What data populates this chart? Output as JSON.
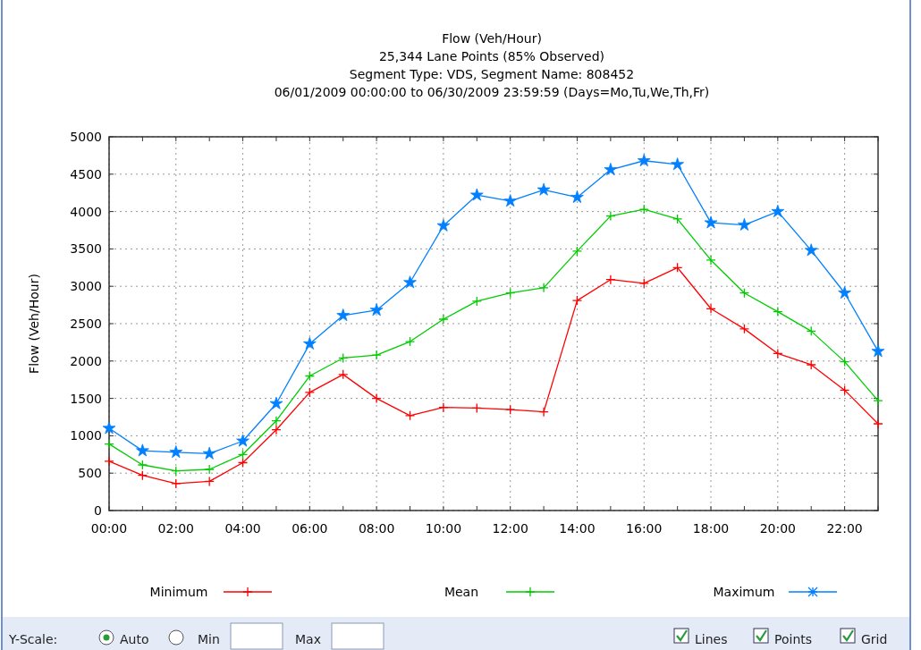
{
  "chart_data": {
    "type": "line",
    "title": "Flow (Veh/Hour)",
    "subtitle": "25,344 Lane Points (85% Observed)\nSegment Type: VDS, Segment Name: 808452\n06/01/2009 00:00:00 to 06/30/2009 23:59:59 (Days=Mo,Tu,We,Th,Fr)",
    "ylabel": "Flow (Veh/Hour)",
    "x": [
      0,
      1,
      2,
      3,
      4,
      5,
      6,
      7,
      8,
      9,
      10,
      11,
      12,
      13,
      14,
      15,
      16,
      17,
      18,
      19,
      20,
      21,
      22,
      23
    ],
    "xlim": [
      0,
      23
    ],
    "xticks": [
      {
        "value": 0,
        "label": "00:00"
      },
      {
        "value": 1,
        "label": null
      },
      {
        "value": 2,
        "label": "02:00"
      },
      {
        "value": 3,
        "label": null
      },
      {
        "value": 4,
        "label": "04:00"
      },
      {
        "value": 5,
        "label": null
      },
      {
        "value": 6,
        "label": "06:00"
      },
      {
        "value": 7,
        "label": null
      },
      {
        "value": 8,
        "label": "08:00"
      },
      {
        "value": 9,
        "label": null
      },
      {
        "value": 10,
        "label": "10:00"
      },
      {
        "value": 11,
        "label": null
      },
      {
        "value": 12,
        "label": "12:00"
      },
      {
        "value": 13,
        "label": null
      },
      {
        "value": 14,
        "label": "14:00"
      },
      {
        "value": 15,
        "label": null
      },
      {
        "value": 16,
        "label": "16:00"
      },
      {
        "value": 17,
        "label": null
      },
      {
        "value": 18,
        "label": "18:00"
      },
      {
        "value": 19,
        "label": null
      },
      {
        "value": 20,
        "label": "20:00"
      },
      {
        "value": 21,
        "label": null
      },
      {
        "value": 22,
        "label": "22:00"
      },
      {
        "value": 23,
        "label": null
      }
    ],
    "ylim": [
      0,
      5000
    ],
    "yticks": [
      0,
      500,
      1000,
      1500,
      2000,
      2500,
      3000,
      3500,
      4000,
      4500,
      5000
    ],
    "grid": true,
    "legend": "bottom",
    "line_style": "solid",
    "series": [
      {
        "name": "Minimum",
        "color": "#ff0000",
        "marker": "cross",
        "values": [
          660,
          470,
          360,
          390,
          640,
          1080,
          1580,
          1820,
          1500,
          1270,
          1380,
          1370,
          1350,
          1320,
          2810,
          3090,
          3040,
          3250,
          2700,
          2430,
          2100,
          1950,
          1610,
          1160
        ]
      },
      {
        "name": "Mean",
        "color": "#00cc00",
        "marker": "cross",
        "values": [
          890,
          610,
          530,
          550,
          750,
          1200,
          1800,
          2040,
          2080,
          2260,
          2560,
          2800,
          2910,
          2980,
          3470,
          3940,
          4030,
          3900,
          3350,
          2910,
          2660,
          2400,
          1990,
          1470
        ]
      },
      {
        "name": "Maximum",
        "color": "#0080ff",
        "marker": "star",
        "values": [
          1100,
          800,
          780,
          760,
          930,
          1430,
          2230,
          2610,
          2680,
          3050,
          3810,
          4220,
          4140,
          4290,
          4190,
          4560,
          4680,
          4630,
          3850,
          3820,
          4000,
          3480,
          2910,
          2130
        ]
      }
    ],
    "annotations": [
      "Y-Scale:",
      "Auto",
      "Min",
      "Max",
      "Lines",
      "Points",
      "Grid"
    ]
  }
}
